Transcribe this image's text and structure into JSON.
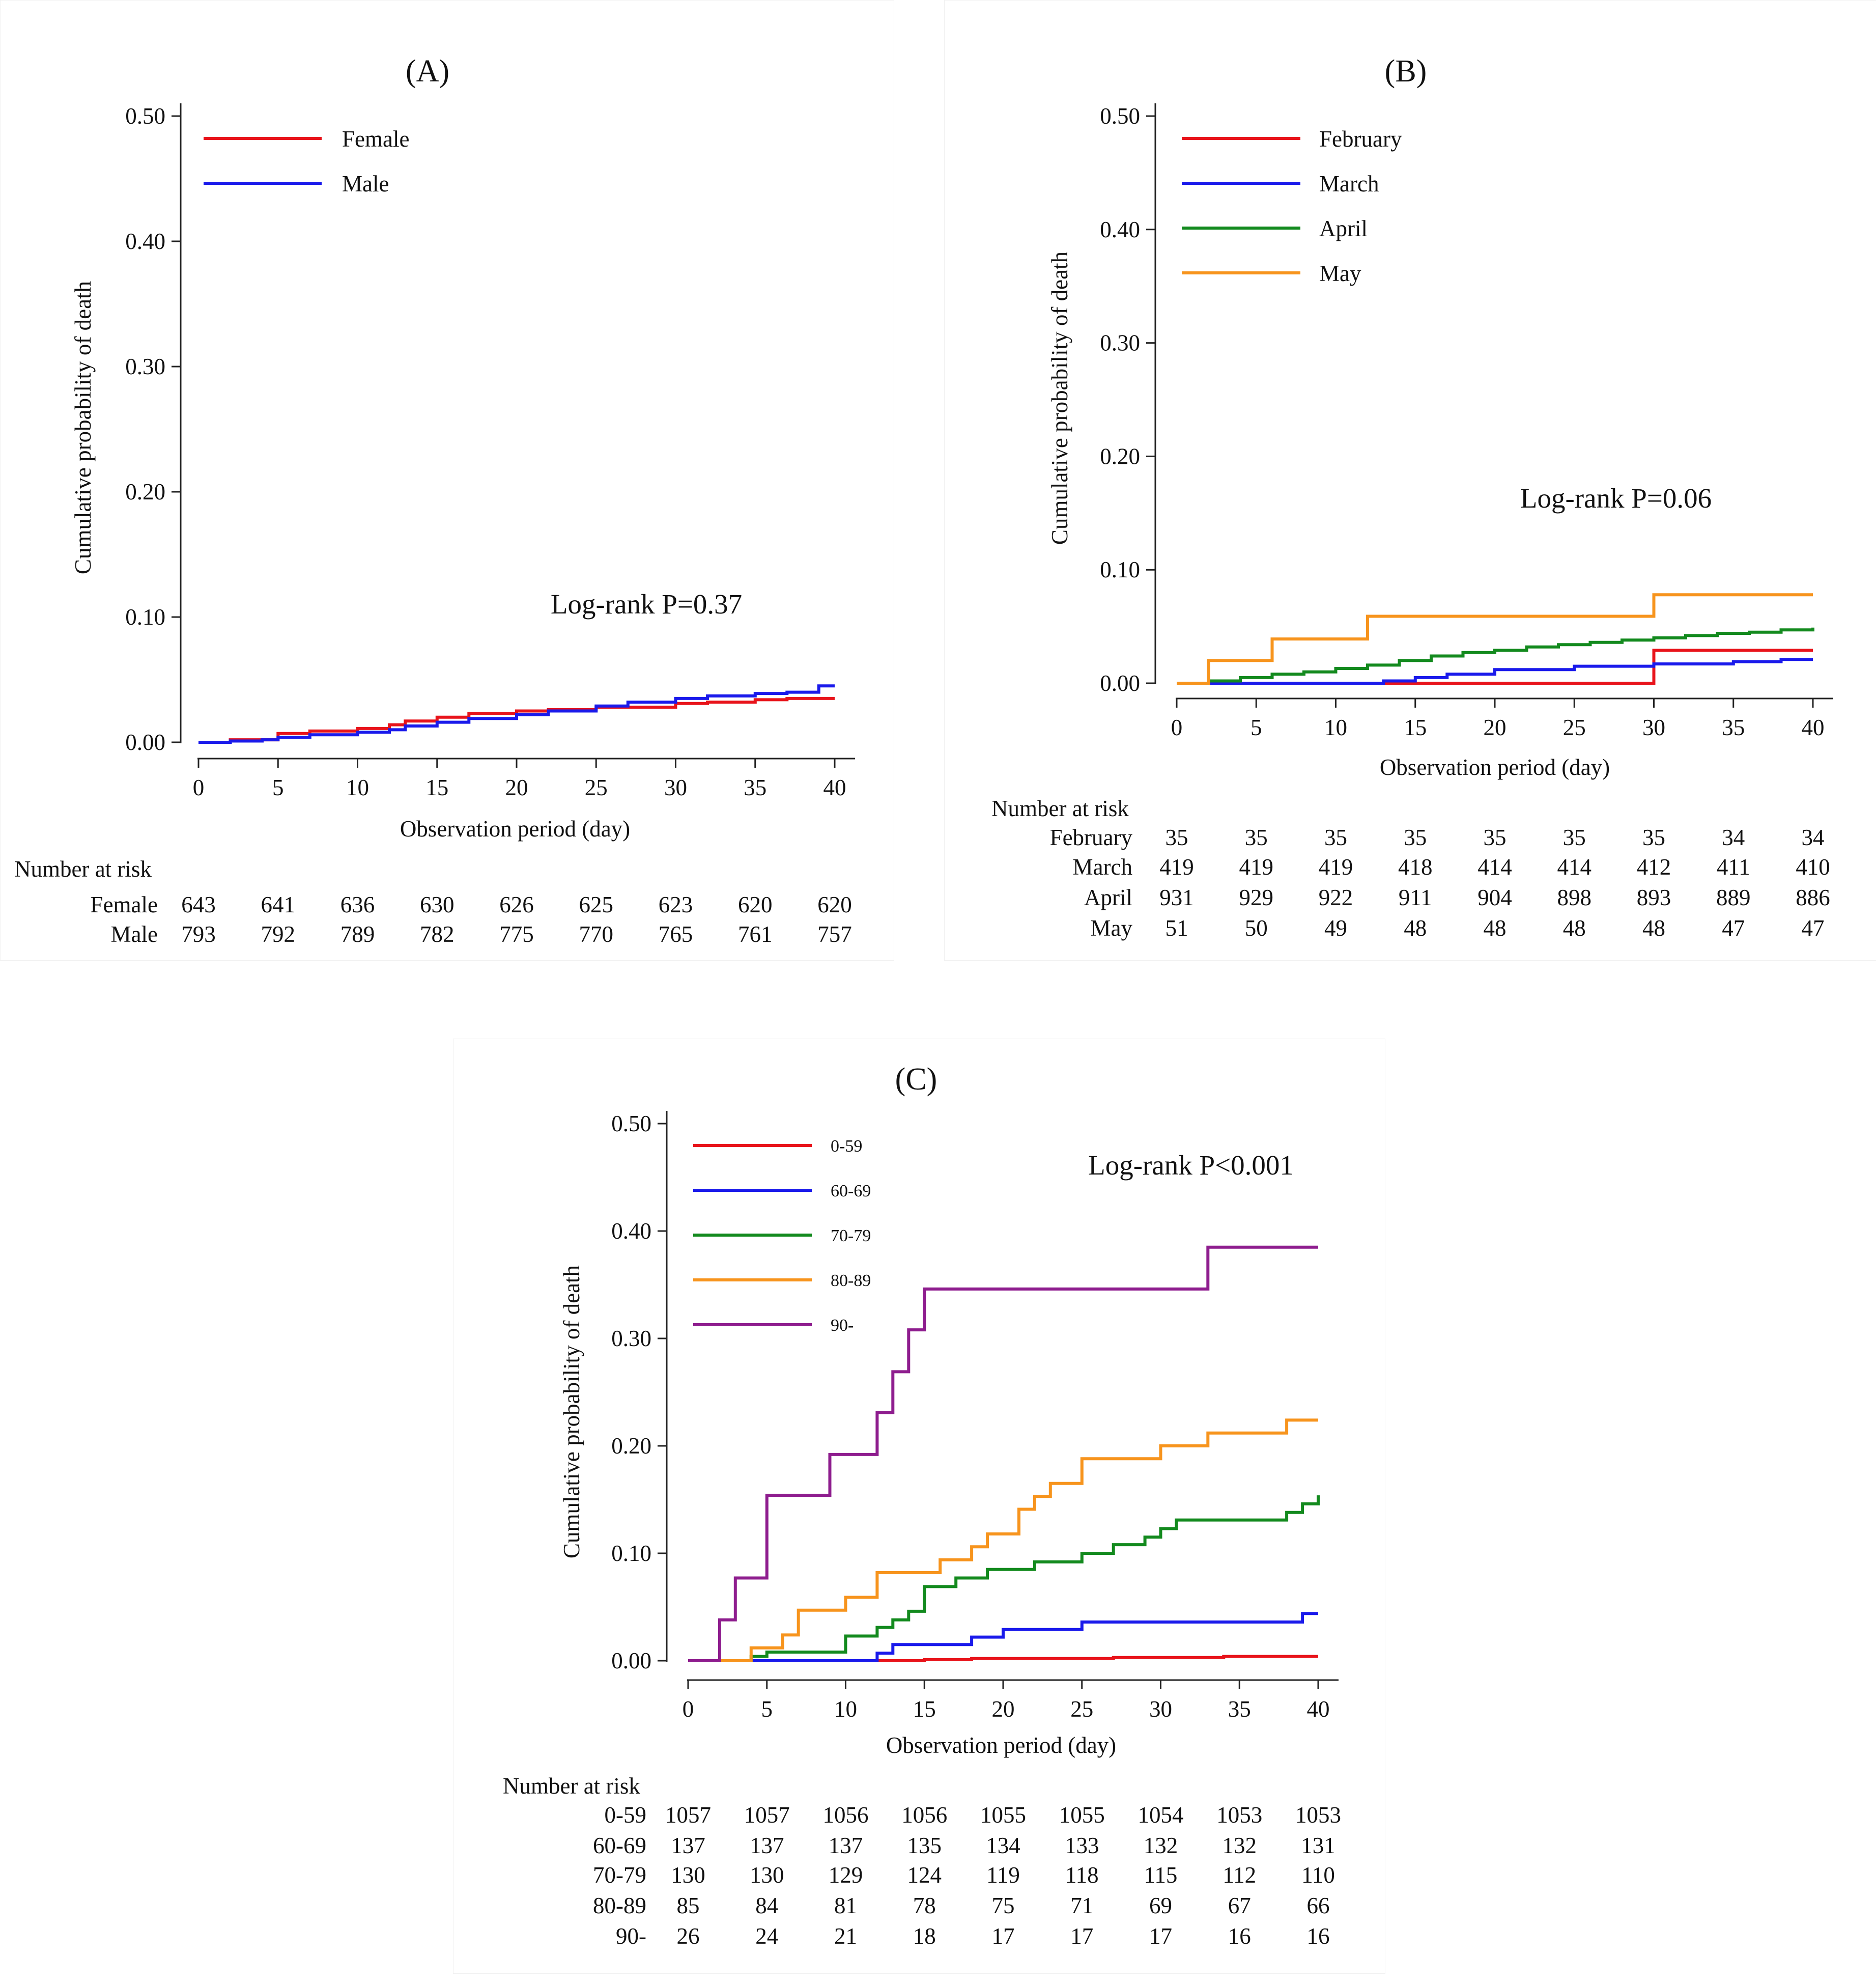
{
  "figure": {
    "panels": [
      {
        "id": "A",
        "label": "(A)"
      },
      {
        "id": "B",
        "label": "(B)"
      },
      {
        "id": "C",
        "label": "(C)"
      }
    ]
  },
  "chart_data": [
    {
      "id": "A",
      "type": "line",
      "subtype": "step",
      "title": "(A)",
      "xlabel": "Observation period (day)",
      "ylabel": "Cumulative probability of death",
      "xlim": [
        0,
        40
      ],
      "ylim": [
        0,
        0.5
      ],
      "xticks": [
        "0",
        "5",
        "10",
        "15",
        "20",
        "25",
        "30",
        "35",
        "40"
      ],
      "yticks": [
        "0.00",
        "0.10",
        "0.20",
        "0.30",
        "0.40",
        "0.50"
      ],
      "legend": "top-left",
      "annotation": "Log-rank P=0.37",
      "series": [
        {
          "name": "Female",
          "color": "#e8141b",
          "x": [
            0,
            2,
            5,
            7,
            10,
            12,
            13,
            15,
            17,
            20,
            22,
            25,
            30,
            32,
            35,
            37,
            40
          ],
          "y": [
            0,
            0.002,
            0.007,
            0.009,
            0.011,
            0.014,
            0.017,
            0.02,
            0.023,
            0.025,
            0.026,
            0.028,
            0.031,
            0.032,
            0.034,
            0.035,
            0.035
          ]
        },
        {
          "name": "Male",
          "color": "#1a1aeb",
          "x": [
            0,
            2,
            4,
            5,
            7,
            10,
            12,
            13,
            15,
            17,
            20,
            22,
            25,
            27,
            30,
            32,
            35,
            37,
            39,
            40
          ],
          "y": [
            0,
            0.001,
            0.002,
            0.004,
            0.006,
            0.008,
            0.01,
            0.013,
            0.016,
            0.019,
            0.022,
            0.025,
            0.029,
            0.032,
            0.035,
            0.037,
            0.039,
            0.04,
            0.045,
            0.045
          ]
        }
      ],
      "risk_table": {
        "title": "Number at risk",
        "times": [
          "0",
          "5",
          "10",
          "15",
          "20",
          "25",
          "30",
          "35",
          "40"
        ],
        "rows": [
          {
            "label": "Female",
            "values": [
              "643",
              "641",
              "636",
              "630",
              "626",
              "625",
              "623",
              "620",
              "620"
            ]
          },
          {
            "label": "Male",
            "values": [
              "793",
              "792",
              "789",
              "782",
              "775",
              "770",
              "765",
              "761",
              "757"
            ]
          }
        ]
      }
    },
    {
      "id": "B",
      "type": "line",
      "subtype": "step",
      "title": "(B)",
      "xlabel": "Observation period (day)",
      "ylabel": "Cumulative probability of death",
      "xlim": [
        0,
        40
      ],
      "ylim": [
        0,
        0.5
      ],
      "xticks": [
        "0",
        "5",
        "10",
        "15",
        "20",
        "25",
        "30",
        "35",
        "40"
      ],
      "yticks": [
        "0.00",
        "0.10",
        "0.20",
        "0.30",
        "0.40",
        "0.50"
      ],
      "legend": "top-left",
      "annotation": "Log-rank P=0.06",
      "series": [
        {
          "name": "February",
          "color": "#e8141b",
          "x": [
            0,
            30,
            40
          ],
          "y": [
            0,
            0.029,
            0.029
          ]
        },
        {
          "name": "March",
          "color": "#1a1aeb",
          "x": [
            0,
            13,
            15,
            17,
            20,
            25,
            30,
            35,
            38,
            40
          ],
          "y": [
            0,
            0.002,
            0.005,
            0.008,
            0.012,
            0.015,
            0.017,
            0.019,
            0.021,
            0.021
          ]
        },
        {
          "name": "April",
          "color": "#138a1e",
          "x": [
            0,
            2,
            4,
            6,
            8,
            10,
            12,
            14,
            16,
            18,
            20,
            22,
            24,
            26,
            28,
            30,
            32,
            34,
            36,
            38,
            40
          ],
          "y": [
            0,
            0.002,
            0.005,
            0.008,
            0.01,
            0.013,
            0.016,
            0.02,
            0.024,
            0.027,
            0.029,
            0.032,
            0.034,
            0.036,
            0.038,
            0.04,
            0.042,
            0.044,
            0.045,
            0.047,
            0.049
          ]
        },
        {
          "name": "May",
          "color": "#f7941d",
          "x": [
            0,
            2,
            6,
            12,
            30,
            40
          ],
          "y": [
            0,
            0.02,
            0.039,
            0.059,
            0.078,
            0.078
          ]
        }
      ],
      "risk_table": {
        "title": "Number at risk",
        "times": [
          "0",
          "5",
          "10",
          "15",
          "20",
          "25",
          "30",
          "35",
          "40"
        ],
        "rows": [
          {
            "label": "February",
            "values": [
              "35",
              "35",
              "35",
              "35",
              "35",
              "35",
              "35",
              "34",
              "34"
            ]
          },
          {
            "label": "March",
            "values": [
              "419",
              "419",
              "419",
              "418",
              "414",
              "414",
              "412",
              "411",
              "410"
            ]
          },
          {
            "label": "April",
            "values": [
              "931",
              "929",
              "922",
              "911",
              "904",
              "898",
              "893",
              "889",
              "886"
            ]
          },
          {
            "label": "May",
            "values": [
              "51",
              "50",
              "49",
              "48",
              "48",
              "48",
              "48",
              "47",
              "47"
            ]
          }
        ]
      }
    },
    {
      "id": "C",
      "type": "line",
      "subtype": "step",
      "title": "(C)",
      "xlabel": "Observation period (day)",
      "ylabel": "Cumulative probability of death",
      "xlim": [
        0,
        40
      ],
      "ylim": [
        0,
        0.5
      ],
      "xticks": [
        "0",
        "5",
        "10",
        "15",
        "20",
        "25",
        "30",
        "35",
        "40"
      ],
      "yticks": [
        "0.00",
        "0.10",
        "0.20",
        "0.30",
        "0.40",
        "0.50"
      ],
      "legend": "top-left",
      "annotation": "Log-rank P<0.001",
      "series": [
        {
          "name": "0-59",
          "color": "#e8141b",
          "x": [
            0,
            15,
            18,
            27,
            34,
            40
          ],
          "y": [
            0,
            0.001,
            0.002,
            0.003,
            0.004,
            0.004
          ]
        },
        {
          "name": "60-69",
          "color": "#1a1aeb",
          "x": [
            0,
            12,
            13,
            18,
            20,
            25,
            39,
            40
          ],
          "y": [
            0,
            0.007,
            0.015,
            0.022,
            0.029,
            0.036,
            0.044,
            0.044
          ]
        },
        {
          "name": "70-79",
          "color": "#138a1e",
          "x": [
            0,
            4,
            5,
            10,
            12,
            13,
            14,
            15,
            17,
            19,
            22,
            25,
            27,
            29,
            30,
            31,
            38,
            39,
            40
          ],
          "y": [
            0,
            0.004,
            0.008,
            0.023,
            0.031,
            0.038,
            0.046,
            0.069,
            0.077,
            0.085,
            0.092,
            0.1,
            0.108,
            0.115,
            0.123,
            0.131,
            0.138,
            0.146,
            0.154
          ]
        },
        {
          "name": "80-89",
          "color": "#f7941d",
          "x": [
            0,
            4,
            6,
            7,
            10,
            12,
            16,
            18,
            19,
            21,
            22,
            23,
            25,
            30,
            33,
            38,
            39,
            40
          ],
          "y": [
            0,
            0.012,
            0.024,
            0.047,
            0.059,
            0.082,
            0.094,
            0.106,
            0.118,
            0.141,
            0.153,
            0.165,
            0.188,
            0.2,
            0.212,
            0.224,
            0.224,
            0.224
          ]
        },
        {
          "name": "90-",
          "color": "#8e1d8e",
          "x": [
            0,
            2,
            3,
            5,
            9,
            12,
            13,
            14,
            15,
            33,
            40
          ],
          "y": [
            0,
            0.038,
            0.077,
            0.154,
            0.192,
            0.231,
            0.269,
            0.308,
            0.346,
            0.385,
            0.385
          ]
        }
      ],
      "risk_table": {
        "title": "Number at risk",
        "times": [
          "0",
          "5",
          "10",
          "15",
          "20",
          "25",
          "30",
          "35",
          "40"
        ],
        "rows": [
          {
            "label": "0-59",
            "values": [
              "1057",
              "1057",
              "1056",
              "1056",
              "1055",
              "1055",
              "1054",
              "1053",
              "1053"
            ]
          },
          {
            "label": "60-69",
            "values": [
              "137",
              "137",
              "137",
              "135",
              "134",
              "133",
              "132",
              "132",
              "131"
            ]
          },
          {
            "label": "70-79",
            "values": [
              "130",
              "130",
              "129",
              "124",
              "119",
              "118",
              "115",
              "112",
              "110"
            ]
          },
          {
            "label": "80-89",
            "values": [
              "85",
              "84",
              "81",
              "78",
              "75",
              "71",
              "69",
              "67",
              "66"
            ]
          },
          {
            "label": "90-",
            "values": [
              "26",
              "24",
              "21",
              "18",
              "17",
              "17",
              "17",
              "16",
              "16"
            ]
          }
        ]
      }
    }
  ]
}
